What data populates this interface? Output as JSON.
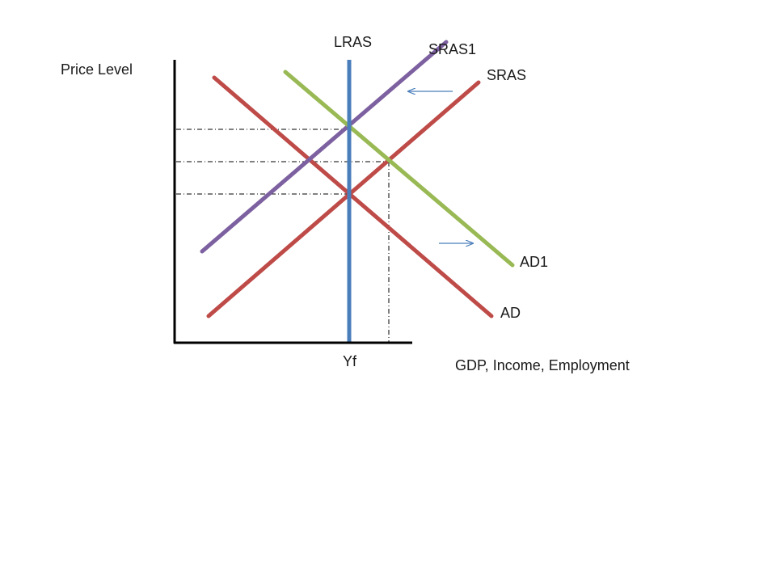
{
  "diagram": {
    "axes": {
      "y_label": "Price Level",
      "x_label": "GDP, Income, Employment"
    },
    "curves": {
      "lras": {
        "label": "LRAS",
        "color": "#4a7ebb"
      },
      "sras": {
        "label": "SRAS",
        "color": "#be4b48"
      },
      "sras1": {
        "label": "SRAS1",
        "color": "#7d60a0"
      },
      "ad": {
        "label": "AD",
        "color": "#be4b48"
      },
      "ad1": {
        "label": "AD1",
        "color": "#98b954"
      }
    },
    "markers": {
      "full_employment_output": "Yf"
    },
    "arrows": {
      "sras_shift": {
        "direction": "left",
        "color": "#4a7ebb"
      },
      "ad_shift": {
        "direction": "right",
        "color": "#4a7ebb"
      }
    },
    "guide_lines": {
      "style": "dash-dot",
      "color": "#000000"
    }
  }
}
